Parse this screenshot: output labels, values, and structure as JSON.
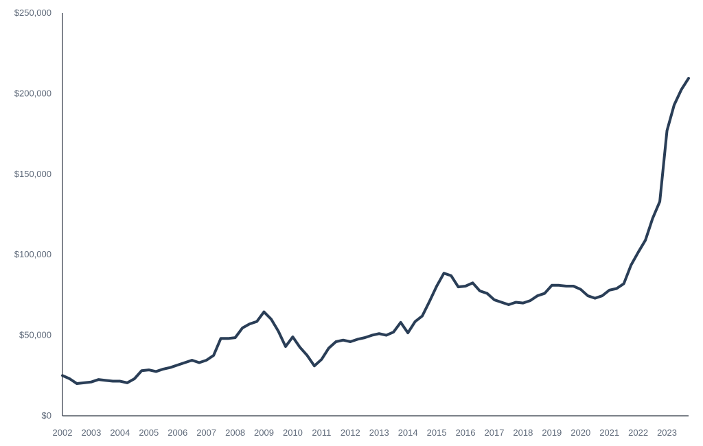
{
  "chart_data": {
    "type": "line",
    "title": "",
    "xlabel": "",
    "ylabel": "",
    "xlim": [
      2002.0,
      2023.75
    ],
    "ylim": [
      0,
      250000
    ],
    "grid": false,
    "legend": "none",
    "line_color": "#2a3e57",
    "axis_color": "#2b3442",
    "tick_color": "#5f6a7a",
    "x_ticks": [
      {
        "label": "2002",
        "value": 2002
      },
      {
        "label": "2003",
        "value": 2003
      },
      {
        "label": "2004",
        "value": 2004
      },
      {
        "label": "2005",
        "value": 2005
      },
      {
        "label": "2006",
        "value": 2006
      },
      {
        "label": "2007",
        "value": 2007
      },
      {
        "label": "2008",
        "value": 2008
      },
      {
        "label": "2009",
        "value": 2009
      },
      {
        "label": "2010",
        "value": 2010
      },
      {
        "label": "2011",
        "value": 2011
      },
      {
        "label": "2012",
        "value": 2012
      },
      {
        "label": "2013",
        "value": 2013
      },
      {
        "label": "2014",
        "value": 2014
      },
      {
        "label": "2015",
        "value": 2015
      },
      {
        "label": "2016",
        "value": 2016
      },
      {
        "label": "2017",
        "value": 2017
      },
      {
        "label": "2018",
        "value": 2018
      },
      {
        "label": "2019",
        "value": 2019
      },
      {
        "label": "2020",
        "value": 2020
      },
      {
        "label": "2021",
        "value": 2021
      },
      {
        "label": "2022",
        "value": 2022
      },
      {
        "label": "2023",
        "value": 2023
      }
    ],
    "y_ticks": [
      {
        "label": "$0",
        "value": 0
      },
      {
        "label": "$50,000",
        "value": 50000
      },
      {
        "label": "$100,000",
        "value": 100000
      },
      {
        "label": "$150,000",
        "value": 150000
      },
      {
        "label": "$200,000",
        "value": 200000
      },
      {
        "label": "$250,000",
        "value": 250000
      }
    ],
    "series": [
      {
        "points": [
          [
            2002.0,
            25000
          ],
          [
            2002.25,
            23000
          ],
          [
            2002.5,
            20000
          ],
          [
            2002.75,
            20500
          ],
          [
            2003.0,
            21000
          ],
          [
            2003.25,
            22500
          ],
          [
            2003.5,
            22000
          ],
          [
            2003.75,
            21500
          ],
          [
            2004.0,
            21500
          ],
          [
            2004.25,
            20500
          ],
          [
            2004.5,
            23000
          ],
          [
            2004.75,
            28000
          ],
          [
            2005.0,
            28500
          ],
          [
            2005.25,
            27500
          ],
          [
            2005.5,
            29000
          ],
          [
            2005.75,
            30000
          ],
          [
            2006.0,
            31500
          ],
          [
            2006.25,
            33000
          ],
          [
            2006.5,
            34500
          ],
          [
            2006.75,
            33000
          ],
          [
            2007.0,
            34500
          ],
          [
            2007.25,
            37500
          ],
          [
            2007.5,
            48000
          ],
          [
            2007.75,
            48000
          ],
          [
            2008.0,
            48500
          ],
          [
            2008.25,
            54500
          ],
          [
            2008.5,
            57000
          ],
          [
            2008.75,
            58500
          ],
          [
            2009.0,
            64500
          ],
          [
            2009.25,
            60000
          ],
          [
            2009.5,
            52500
          ],
          [
            2009.75,
            43000
          ],
          [
            2010.0,
            49000
          ],
          [
            2010.25,
            42500
          ],
          [
            2010.5,
            37500
          ],
          [
            2010.75,
            31000
          ],
          [
            2011.0,
            35000
          ],
          [
            2011.25,
            42000
          ],
          [
            2011.5,
            46000
          ],
          [
            2011.75,
            47000
          ],
          [
            2012.0,
            46000
          ],
          [
            2012.25,
            47500
          ],
          [
            2012.5,
            48500
          ],
          [
            2012.75,
            50000
          ],
          [
            2013.0,
            51000
          ],
          [
            2013.25,
            50000
          ],
          [
            2013.5,
            52000
          ],
          [
            2013.75,
            58000
          ],
          [
            2014.0,
            51500
          ],
          [
            2014.25,
            58500
          ],
          [
            2014.5,
            62000
          ],
          [
            2014.75,
            71000
          ],
          [
            2015.0,
            80500
          ],
          [
            2015.25,
            88500
          ],
          [
            2015.5,
            87000
          ],
          [
            2015.75,
            80000
          ],
          [
            2016.0,
            80500
          ],
          [
            2016.25,
            82500
          ],
          [
            2016.5,
            77500
          ],
          [
            2016.75,
            76000
          ],
          [
            2017.0,
            72000
          ],
          [
            2017.25,
            70500
          ],
          [
            2017.5,
            69000
          ],
          [
            2017.75,
            70500
          ],
          [
            2018.0,
            70000
          ],
          [
            2018.25,
            71500
          ],
          [
            2018.5,
            74500
          ],
          [
            2018.75,
            76000
          ],
          [
            2019.0,
            81000
          ],
          [
            2019.25,
            81000
          ],
          [
            2019.5,
            80500
          ],
          [
            2019.75,
            80500
          ],
          [
            2020.0,
            78500
          ],
          [
            2020.25,
            74500
          ],
          [
            2020.5,
            73000
          ],
          [
            2020.75,
            74500
          ],
          [
            2021.0,
            78000
          ],
          [
            2021.25,
            79000
          ],
          [
            2021.5,
            82000
          ],
          [
            2021.75,
            93500
          ],
          [
            2022.0,
            101500
          ],
          [
            2022.25,
            109000
          ],
          [
            2022.5,
            122500
          ],
          [
            2022.75,
            133000
          ],
          [
            2023.0,
            177000
          ],
          [
            2023.25,
            193000
          ],
          [
            2023.5,
            202500
          ],
          [
            2023.75,
            209500
          ]
        ]
      }
    ]
  }
}
